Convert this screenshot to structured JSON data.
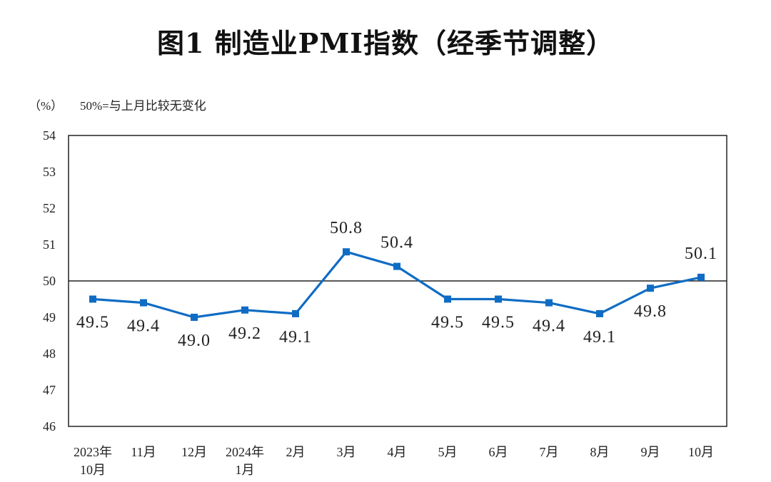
{
  "chart_data": {
    "type": "line",
    "title": "图1  制造业PMI指数（经季节调整）",
    "ylabel": "（%）",
    "annotation": "50%=与上月比较无变化",
    "ylim": [
      46,
      54
    ],
    "yticks": [
      "46",
      "47",
      "48",
      "49",
      "50",
      "51",
      "52",
      "53",
      "54"
    ],
    "reference_line": 50,
    "categories": [
      [
        "2023年",
        "10月"
      ],
      [
        "11月"
      ],
      [
        "12月"
      ],
      [
        "2024年",
        "1月"
      ],
      [
        "2月"
      ],
      [
        "3月"
      ],
      [
        "4月"
      ],
      [
        "5月"
      ],
      [
        "6月"
      ],
      [
        "7月"
      ],
      [
        "8月"
      ],
      [
        "9月"
      ],
      [
        "10月"
      ]
    ],
    "series": [
      {
        "values": [
          49.5,
          49.4,
          49.0,
          49.2,
          49.1,
          50.8,
          50.4,
          49.5,
          49.5,
          49.4,
          49.1,
          49.8,
          50.1
        ],
        "labels": [
          "49.5",
          "49.4",
          "49.0",
          "49.2",
          "49.1",
          "50.8",
          "50.4",
          "49.5",
          "49.5",
          "49.4",
          "49.1",
          "49.8",
          "50.1"
        ],
        "color": "#0f6cc4"
      }
    ],
    "grid": false
  }
}
